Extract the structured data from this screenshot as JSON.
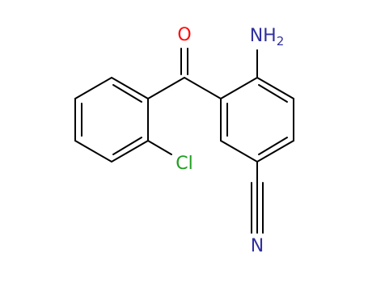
{
  "atoms": {
    "oxygen": "O",
    "amine": {
      "main": "NH",
      "sub": "2"
    },
    "chlorine": "Cl",
    "nitrile_n": "N"
  }
}
